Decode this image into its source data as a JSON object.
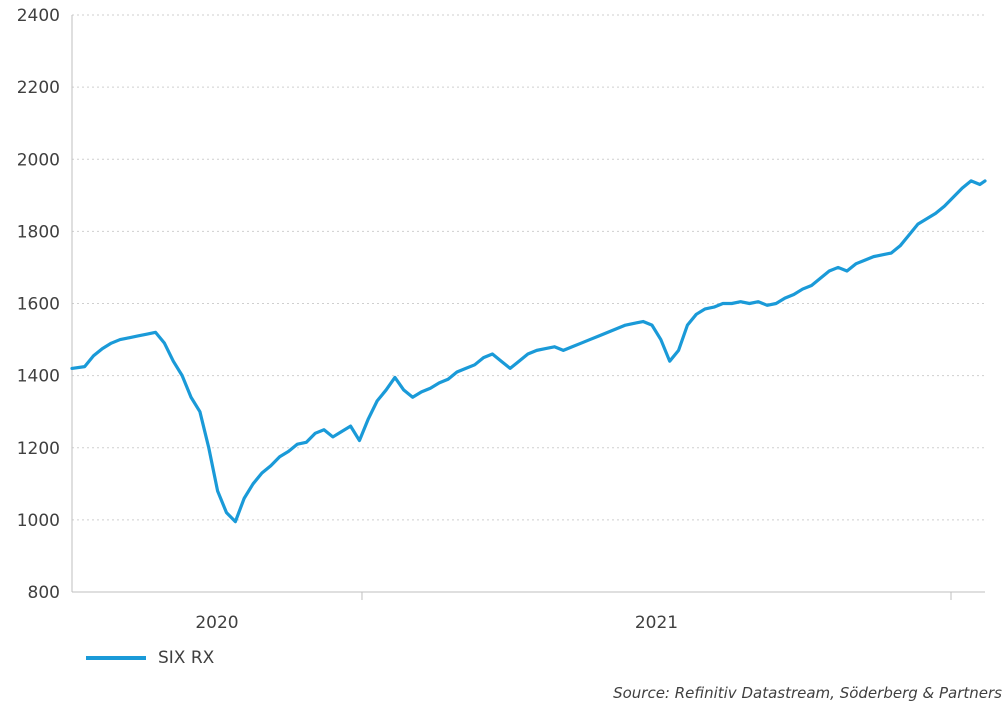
{
  "chart_data": {
    "type": "line",
    "title": "",
    "xlabel": "",
    "ylabel": "",
    "ylim": [
      800,
      2400
    ],
    "yticks": [
      800,
      1000,
      1200,
      1400,
      1600,
      1800,
      2000,
      2200,
      2400
    ],
    "ytick_labels": [
      "800",
      "1000",
      "1200",
      "1400",
      "1600",
      "1800",
      "2000",
      "2200",
      "2400"
    ],
    "xlim": [
      "2019-11-15",
      "2021-11-05"
    ],
    "xticks": [
      "2020-07-01",
      "2021-07-01"
    ],
    "xtick_labels": [
      "2020",
      "2021"
    ],
    "year_dividers": [
      "2020-07-01"
    ],
    "grid": true,
    "legend_position": "bottom-left",
    "series": [
      {
        "name": "SIX RX",
        "color": "#1a9ad8",
        "points": [
          [
            "2019-11-15",
            1420
          ],
          [
            "2019-11-25",
            1425
          ],
          [
            "2019-12-02",
            1455
          ],
          [
            "2019-12-09",
            1475
          ],
          [
            "2019-12-16",
            1490
          ],
          [
            "2019-12-23",
            1500
          ],
          [
            "2019-12-30",
            1505
          ],
          [
            "2020-01-06",
            1510
          ],
          [
            "2020-01-13",
            1515
          ],
          [
            "2020-01-20",
            1520
          ],
          [
            "2020-01-27",
            1490
          ],
          [
            "2020-02-03",
            1440
          ],
          [
            "2020-02-10",
            1400
          ],
          [
            "2020-02-17",
            1340
          ],
          [
            "2020-02-24",
            1300
          ],
          [
            "2020-03-02",
            1200
          ],
          [
            "2020-03-09",
            1080
          ],
          [
            "2020-03-16",
            1020
          ],
          [
            "2020-03-23",
            995
          ],
          [
            "2020-03-30",
            1060
          ],
          [
            "2020-04-06",
            1100
          ],
          [
            "2020-04-13",
            1130
          ],
          [
            "2020-04-20",
            1150
          ],
          [
            "2020-04-27",
            1175
          ],
          [
            "2020-05-04",
            1190
          ],
          [
            "2020-05-11",
            1210
          ],
          [
            "2020-05-18",
            1215
          ],
          [
            "2020-05-25",
            1240
          ],
          [
            "2020-06-01",
            1250
          ],
          [
            "2020-06-08",
            1230
          ],
          [
            "2020-06-15",
            1245
          ],
          [
            "2020-06-22",
            1260
          ],
          [
            "2020-06-29",
            1220
          ],
          [
            "2020-07-06",
            1280
          ],
          [
            "2020-07-13",
            1330
          ],
          [
            "2020-07-20",
            1360
          ],
          [
            "2020-07-27",
            1395
          ],
          [
            "2020-08-03",
            1360
          ],
          [
            "2020-08-10",
            1340
          ],
          [
            "2020-08-17",
            1355
          ],
          [
            "2020-08-24",
            1365
          ],
          [
            "2020-08-31",
            1380
          ],
          [
            "2020-09-07",
            1390
          ],
          [
            "2020-09-14",
            1410
          ],
          [
            "2020-09-21",
            1420
          ],
          [
            "2020-09-28",
            1430
          ],
          [
            "2020-10-05",
            1450
          ],
          [
            "2020-10-12",
            1460
          ],
          [
            "2020-10-19",
            1440
          ],
          [
            "2020-10-26",
            1420
          ],
          [
            "2020-11-02",
            1440
          ],
          [
            "2020-11-09",
            1460
          ],
          [
            "2020-11-16",
            1470
          ],
          [
            "2020-11-23",
            1475
          ],
          [
            "2020-11-30",
            1480
          ],
          [
            "2020-12-07",
            1470
          ],
          [
            "2020-12-14",
            1480
          ],
          [
            "2020-12-21",
            1490
          ],
          [
            "2020-12-28",
            1500
          ],
          [
            "2021-01-04",
            1510
          ],
          [
            "2021-01-11",
            1520
          ],
          [
            "2021-01-18",
            1530
          ],
          [
            "2021-01-25",
            1540
          ],
          [
            "2021-02-01",
            1545
          ],
          [
            "2021-02-08",
            1550
          ],
          [
            "2021-02-15",
            1540
          ],
          [
            "2021-02-22",
            1500
          ],
          [
            "2021-03-01",
            1440
          ],
          [
            "2021-03-08",
            1470
          ],
          [
            "2021-03-15",
            1540
          ],
          [
            "2021-03-22",
            1570
          ],
          [
            "2021-03-29",
            1585
          ],
          [
            "2021-04-05",
            1590
          ],
          [
            "2021-04-12",
            1600
          ],
          [
            "2021-04-19",
            1600
          ],
          [
            "2021-04-26",
            1605
          ],
          [
            "2021-05-03",
            1600
          ],
          [
            "2021-05-10",
            1605
          ],
          [
            "2021-05-17",
            1595
          ],
          [
            "2021-05-24",
            1600
          ],
          [
            "2021-05-31",
            1615
          ],
          [
            "2021-06-07",
            1625
          ],
          [
            "2021-06-14",
            1640
          ],
          [
            "2021-06-21",
            1650
          ],
          [
            "2021-06-28",
            1670
          ],
          [
            "2021-07-05",
            1690
          ],
          [
            "2021-07-12",
            1700
          ],
          [
            "2021-07-19",
            1690
          ],
          [
            "2021-07-26",
            1710
          ],
          [
            "2021-08-02",
            1720
          ],
          [
            "2021-08-09",
            1730
          ],
          [
            "2021-08-16",
            1735
          ],
          [
            "2021-08-23",
            1740
          ],
          [
            "2021-08-30",
            1760
          ],
          [
            "2021-09-06",
            1790
          ],
          [
            "2021-09-13",
            1820
          ],
          [
            "2021-09-20",
            1835
          ],
          [
            "2021-09-27",
            1850
          ],
          [
            "2021-10-04",
            1870
          ],
          [
            "2021-10-11",
            1895
          ],
          [
            "2021-10-18",
            1920
          ],
          [
            "2021-10-25",
            1940
          ],
          [
            "2021-11-01",
            1930
          ],
          [
            "2021-11-05",
            1940
          ]
        ]
      }
    ]
  },
  "legend": {
    "label": "SIX RX"
  },
  "source": "Source: Refinitiv Datastream, Söderberg & Partners"
}
